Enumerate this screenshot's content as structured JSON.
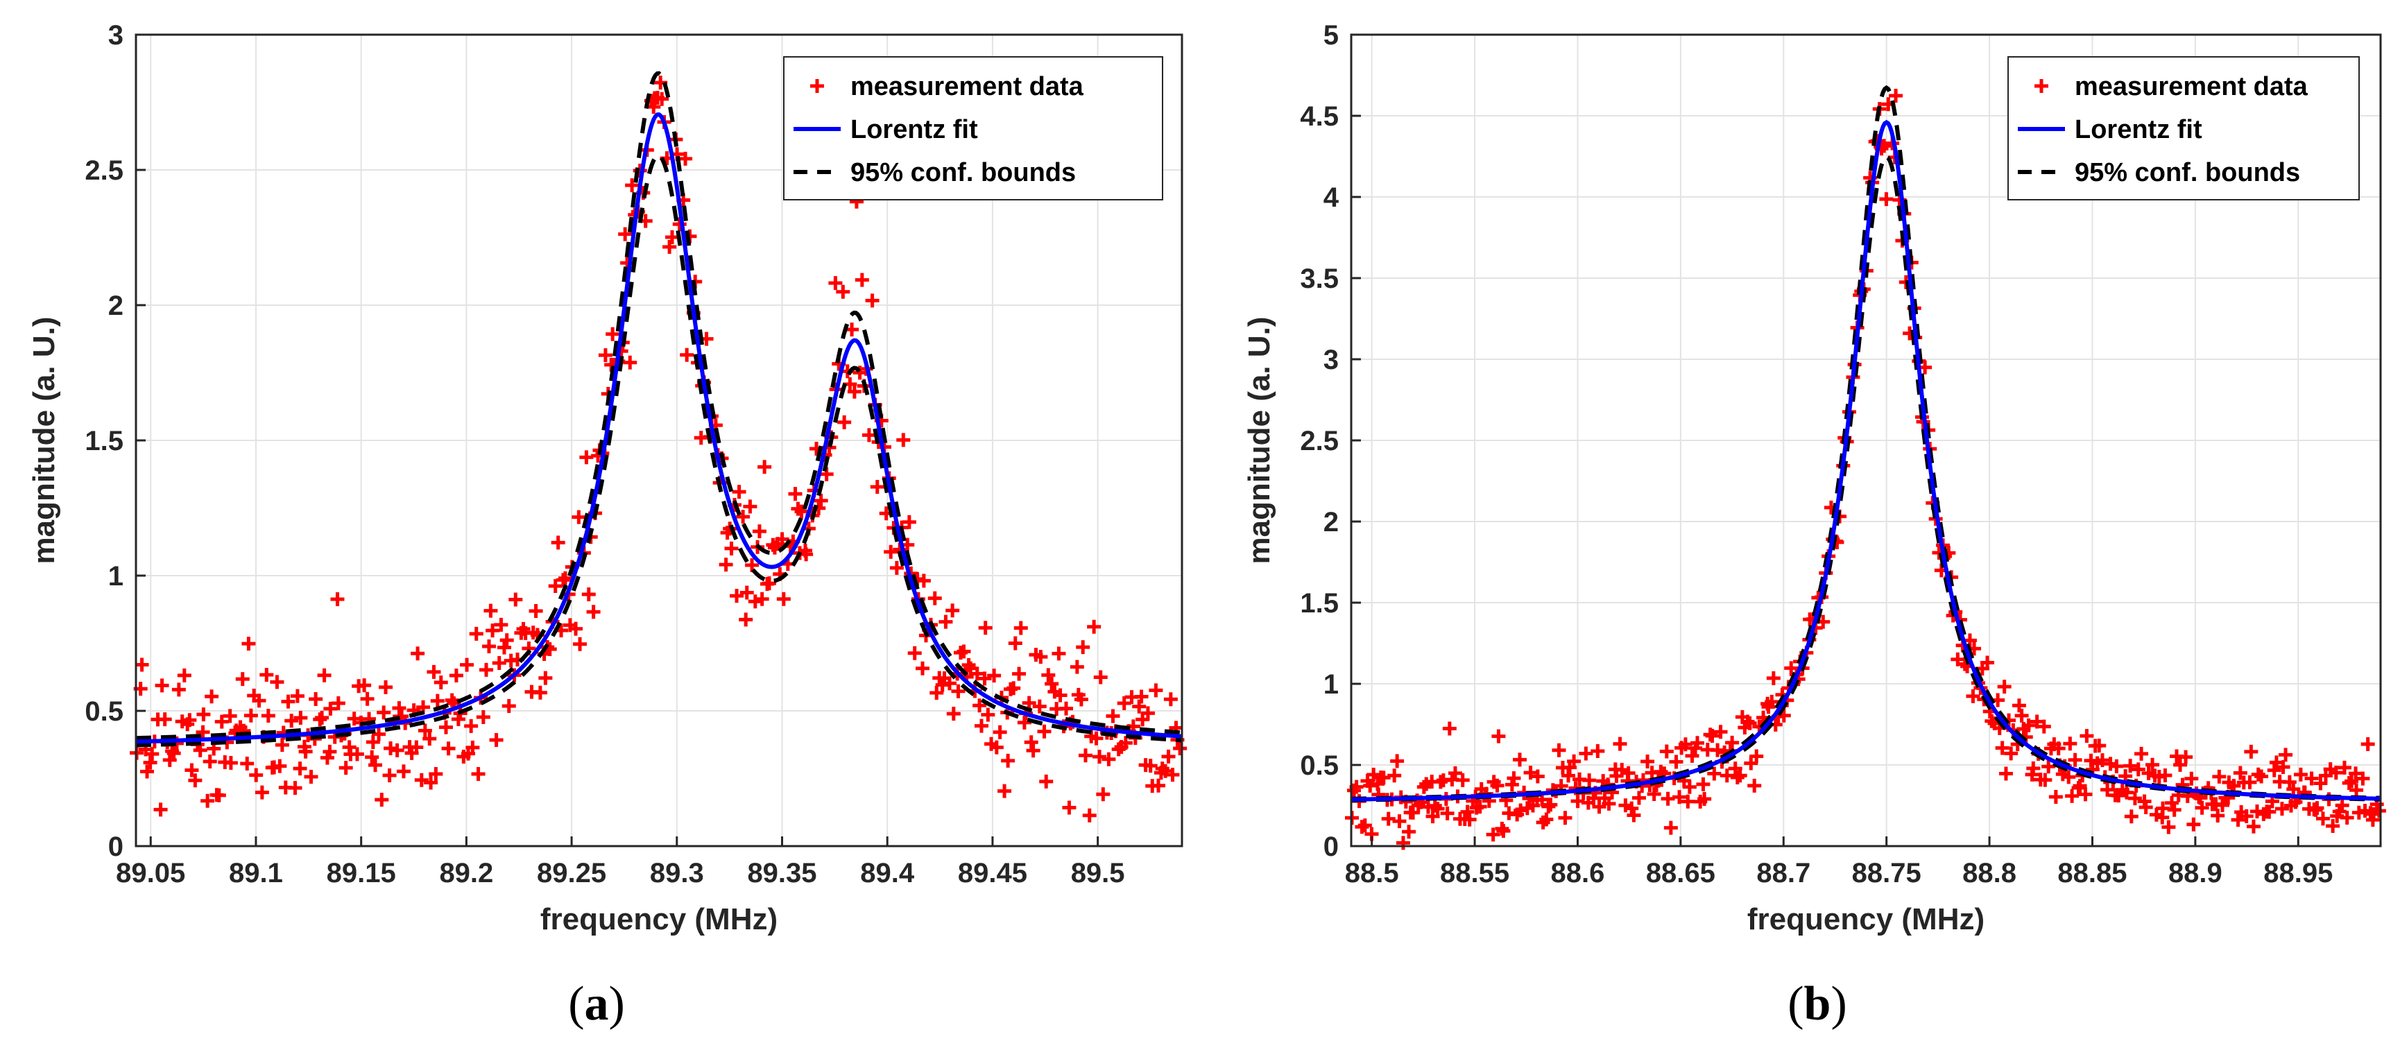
{
  "colors": {
    "measurement": "#ff0000",
    "fit": "#0000ff",
    "bounds": "#000000",
    "grid": "#e3e3e3",
    "axis": "#262626"
  },
  "chart_data": [
    {
      "panel": "(a)",
      "panel_letter": "a",
      "type": "scatter+line",
      "xlabel": "frequency (MHz)",
      "ylabel": "magnitude (a. U.)",
      "xlim": [
        89.043,
        89.54
      ],
      "ylim": [
        0,
        3
      ],
      "xticks": [
        89.05,
        89.1,
        89.15,
        89.2,
        89.25,
        89.3,
        89.35,
        89.4,
        89.45,
        89.5
      ],
      "xtick_labels": [
        "89.05",
        "89.1",
        "89.15",
        "89.2",
        "89.25",
        "89.3",
        "89.35",
        "89.4",
        "89.45",
        "89.5"
      ],
      "yticks": [
        0,
        0.5,
        1,
        1.5,
        2,
        2.5,
        3
      ],
      "ytick_labels": [
        "0",
        "0.5",
        "1",
        "1.5",
        "2",
        "2.5",
        "3"
      ],
      "grid": true,
      "legend_position": "top-right",
      "legend": [
        {
          "label": "measurement data",
          "style": "marker-plus",
          "color": "#ff0000"
        },
        {
          "label": "Lorentz fit",
          "style": "solid",
          "color": "#0000ff"
        },
        {
          "label": "95% conf. bounds",
          "style": "dashed",
          "color": "#000000"
        }
      ],
      "model": {
        "type": "double-lorentzian",
        "baseline": 0.36,
        "peaks": [
          {
            "center_MHz": 89.291,
            "half_width_MHz": 0.024,
            "amplitude": 2.28
          },
          {
            "center_MHz": 89.385,
            "half_width_MHz": 0.021,
            "amplitude": 1.37
          }
        ],
        "bounds_spread": 0.06
      },
      "measurement": {
        "points": 420,
        "noise_sd": 0.17,
        "seed": 7
      }
    },
    {
      "panel": "(b)",
      "panel_letter": "b",
      "type": "scatter+line",
      "xlabel": "frequency (MHz)",
      "ylabel": "magnitude (a. U.)",
      "xlim": [
        88.49,
        88.99
      ],
      "ylim": [
        0,
        5
      ],
      "xticks": [
        88.5,
        88.55,
        88.6,
        88.65,
        88.7,
        88.75,
        88.8,
        88.85,
        88.9,
        88.95
      ],
      "xtick_labels": [
        "88.5",
        "88.55",
        "88.6",
        "88.65",
        "88.7",
        "88.75",
        "88.8",
        "88.85",
        "88.9",
        "88.95"
      ],
      "yticks": [
        0,
        0.5,
        1,
        1.5,
        2,
        2.5,
        3,
        3.5,
        4,
        4.5,
        5
      ],
      "ytick_labels": [
        "0",
        "0.5",
        "1",
        "1.5",
        "2",
        "2.5",
        "3",
        "3.5",
        "4",
        "4.5",
        "5"
      ],
      "grid": true,
      "legend_position": "top-right",
      "legend": [
        {
          "label": "measurement data",
          "style": "marker-plus",
          "color": "#ff0000"
        },
        {
          "label": "Lorentz fit",
          "style": "solid",
          "color": "#0000ff"
        },
        {
          "label": "95% conf. bounds",
          "style": "dashed",
          "color": "#000000"
        }
      ],
      "model": {
        "type": "lorentzian",
        "baseline": 0.26,
        "peaks": [
          {
            "center_MHz": 88.75,
            "half_width_MHz": 0.021,
            "amplitude": 4.2
          }
        ],
        "bounds_spread": 0.05
      },
      "measurement": {
        "points": 420,
        "noise_sd": 0.16,
        "seed": 11
      }
    }
  ]
}
